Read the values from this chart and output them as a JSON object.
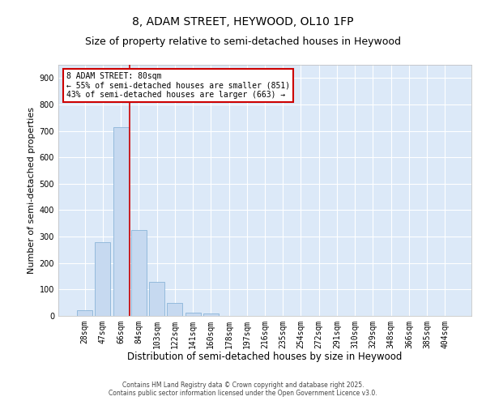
{
  "title_line1": "8, ADAM STREET, HEYWOOD, OL10 1FP",
  "title_line2": "Size of property relative to semi-detached houses in Heywood",
  "xlabel": "Distribution of semi-detached houses by size in Heywood",
  "ylabel": "Number of semi-detached properties",
  "categories": [
    "28sqm",
    "47sqm",
    "66sqm",
    "84sqm",
    "103sqm",
    "122sqm",
    "141sqm",
    "160sqm",
    "178sqm",
    "197sqm",
    "216sqm",
    "235sqm",
    "254sqm",
    "272sqm",
    "291sqm",
    "310sqm",
    "329sqm",
    "348sqm",
    "366sqm",
    "385sqm",
    "404sqm"
  ],
  "values": [
    20,
    280,
    715,
    325,
    130,
    50,
    12,
    8,
    0,
    0,
    0,
    0,
    0,
    0,
    0,
    0,
    0,
    0,
    0,
    0,
    0
  ],
  "bar_color": "#c6d9f0",
  "bar_edge_color": "#8ab4d8",
  "vline_color": "#cc0000",
  "vline_x": 2.5,
  "annotation_text": "8 ADAM STREET: 80sqm\n← 55% of semi-detached houses are smaller (851)\n43% of semi-detached houses are larger (663) →",
  "annotation_box_color": "#cc0000",
  "ylim": [
    0,
    950
  ],
  "yticks": [
    0,
    100,
    200,
    300,
    400,
    500,
    600,
    700,
    800,
    900
  ],
  "background_color": "#dce9f8",
  "grid_color": "#ffffff",
  "footer_text": "Contains HM Land Registry data © Crown copyright and database right 2025.\nContains public sector information licensed under the Open Government Licence v3.0.",
  "title_fontsize": 10,
  "subtitle_fontsize": 9,
  "xlabel_fontsize": 8.5,
  "ylabel_fontsize": 8,
  "tick_fontsize": 7,
  "footer_fontsize": 5.5,
  "annotation_fontsize": 7
}
